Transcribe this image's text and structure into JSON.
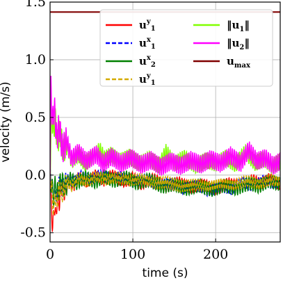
{
  "chart_data": {
    "type": "line",
    "xlabel": "time (s)",
    "ylabel": "velocity (m/s)",
    "xlim": [
      0,
      278
    ],
    "ylim": [
      -0.58,
      1.5
    ],
    "x_ticks": [
      {
        "value": 0,
        "label": "0"
      },
      {
        "value": 100,
        "label": "100"
      },
      {
        "value": 200,
        "label": "200"
      }
    ],
    "y_ticks": [
      {
        "value": -0.5,
        "label": "-0.5"
      },
      {
        "value": 0.0,
        "label": "0.0"
      },
      {
        "value": 0.5,
        "label": "0.5"
      },
      {
        "value": 1.0,
        "label": "1.0"
      },
      {
        "value": 1.5,
        "label": "1.5"
      }
    ],
    "grid": true,
    "legend_position": "top-right",
    "legend": [
      {
        "label": "uʸ₁",
        "base": "u",
        "sup": "y",
        "sub": "1",
        "norm": false,
        "color": "#ff0000",
        "dash": "solid"
      },
      {
        "label": "uˣ₁",
        "base": "u",
        "sup": "x",
        "sub": "1",
        "norm": false,
        "color": "#0000ff",
        "dash": "dashed"
      },
      {
        "label": "uˣ₂",
        "base": "u",
        "sup": "x",
        "sub": "2",
        "norm": false,
        "color": "#008000",
        "dash": "solid"
      },
      {
        "label": "uʸ₁",
        "base": "u",
        "sup": "y",
        "sub": "1",
        "norm": false,
        "color": "#d4aa00",
        "dash": "dashed"
      },
      {
        "label": "‖u₁‖",
        "base": "u",
        "sup": "",
        "sub": "1",
        "norm": true,
        "color": "#80ff00",
        "dash": "solid"
      },
      {
        "label": "‖u₂‖",
        "base": "u",
        "sup": "",
        "sub": "2",
        "norm": true,
        "color": "#ff00ff",
        "dash": "solid"
      },
      {
        "label": "uₘₐₓ",
        "base": "u",
        "sup": "",
        "sub": "max",
        "norm": false,
        "color": "#800000",
        "dash": "solid"
      }
    ],
    "series": [
      {
        "color": "#ff0000",
        "dash": "solid",
        "points": [
          [
            0,
            0
          ],
          [
            2,
            -0.3
          ],
          [
            3,
            -0.5
          ],
          [
            5,
            -0.25
          ],
          [
            7,
            -0.38
          ],
          [
            9,
            -0.15
          ],
          [
            11,
            -0.24
          ],
          [
            14,
            -0.1
          ],
          [
            18,
            -0.15
          ],
          [
            22,
            -0.05
          ],
          [
            28,
            -0.1
          ],
          [
            35,
            -0.02
          ],
          [
            45,
            -0.06
          ],
          [
            55,
            0.0
          ],
          [
            65,
            -0.05
          ],
          [
            75,
            0.0
          ],
          [
            90,
            -0.06
          ],
          [
            100,
            -0.02
          ],
          [
            110,
            -0.08
          ],
          [
            125,
            -0.03
          ],
          [
            140,
            -0.1
          ],
          [
            155,
            -0.06
          ],
          [
            170,
            -0.11
          ],
          [
            185,
            -0.08
          ],
          [
            200,
            -0.12
          ],
          [
            215,
            -0.07
          ],
          [
            230,
            -0.1
          ],
          [
            245,
            -0.04
          ],
          [
            255,
            -0.08
          ],
          [
            265,
            -0.03
          ],
          [
            272,
            -0.06
          ],
          [
            278,
            -0.08
          ]
        ]
      },
      {
        "color": "#0000ff",
        "dash": "dashed",
        "points": [
          [
            0,
            0
          ],
          [
            2,
            -0.1
          ],
          [
            4,
            -0.22
          ],
          [
            6,
            -0.12
          ],
          [
            8,
            -0.2
          ],
          [
            11,
            -0.08
          ],
          [
            15,
            -0.12
          ],
          [
            20,
            -0.03
          ],
          [
            28,
            -0.06
          ],
          [
            38,
            0.0
          ],
          [
            50,
            -0.04
          ],
          [
            60,
            0.01
          ],
          [
            72,
            -0.03
          ],
          [
            85,
            -0.01
          ],
          [
            100,
            -0.06
          ],
          [
            115,
            -0.03
          ],
          [
            130,
            -0.09
          ],
          [
            145,
            -0.07
          ],
          [
            160,
            -0.12
          ],
          [
            175,
            -0.08
          ],
          [
            190,
            -0.14
          ],
          [
            205,
            -0.1
          ],
          [
            220,
            -0.13
          ],
          [
            232,
            -0.06
          ],
          [
            245,
            -0.1
          ],
          [
            258,
            -0.04
          ],
          [
            268,
            -0.08
          ],
          [
            278,
            -0.05
          ]
        ]
      },
      {
        "color": "#008000",
        "dash": "solid",
        "points": [
          [
            0,
            0
          ],
          [
            2,
            -0.08
          ],
          [
            4,
            -0.2
          ],
          [
            6,
            -0.1
          ],
          [
            9,
            -0.16
          ],
          [
            13,
            -0.06
          ],
          [
            18,
            -0.1
          ],
          [
            24,
            -0.03
          ],
          [
            32,
            -0.07
          ],
          [
            42,
            -0.02
          ],
          [
            55,
            -0.06
          ],
          [
            65,
            -0.01
          ],
          [
            78,
            -0.05
          ],
          [
            92,
            -0.02
          ],
          [
            105,
            -0.07
          ],
          [
            120,
            -0.04
          ],
          [
            135,
            -0.1
          ],
          [
            150,
            -0.08
          ],
          [
            165,
            -0.12
          ],
          [
            180,
            -0.09
          ],
          [
            195,
            -0.13
          ],
          [
            210,
            -0.09
          ],
          [
            225,
            -0.12
          ],
          [
            240,
            -0.07
          ],
          [
            252,
            -0.1
          ],
          [
            264,
            -0.05
          ],
          [
            278,
            -0.08
          ]
        ]
      },
      {
        "color": "#d4aa00",
        "dash": "dashed",
        "points": [
          [
            0,
            0
          ],
          [
            2,
            -0.12
          ],
          [
            4,
            -0.3
          ],
          [
            6,
            -0.18
          ],
          [
            8,
            -0.25
          ],
          [
            11,
            -0.12
          ],
          [
            15,
            -0.16
          ],
          [
            20,
            -0.06
          ],
          [
            26,
            -0.1
          ],
          [
            34,
            -0.03
          ],
          [
            44,
            -0.06
          ],
          [
            56,
            -0.01
          ],
          [
            68,
            -0.04
          ],
          [
            82,
            -0.02
          ],
          [
            96,
            -0.05
          ],
          [
            110,
            -0.03
          ],
          [
            126,
            -0.07
          ],
          [
            142,
            -0.06
          ],
          [
            158,
            -0.1
          ],
          [
            174,
            -0.08
          ],
          [
            190,
            -0.1
          ],
          [
            206,
            -0.07
          ],
          [
            222,
            -0.09
          ],
          [
            238,
            -0.05
          ],
          [
            252,
            -0.08
          ],
          [
            266,
            -0.04
          ],
          [
            278,
            -0.06
          ]
        ]
      },
      {
        "color": "#80ff00",
        "dash": "solid",
        "points": [
          [
            0,
            0.0
          ],
          [
            2,
            0.55
          ],
          [
            4,
            0.35
          ],
          [
            6,
            0.5
          ],
          [
            9,
            0.28
          ],
          [
            12,
            0.38
          ],
          [
            16,
            0.2
          ],
          [
            20,
            0.28
          ],
          [
            26,
            0.12
          ],
          [
            34,
            0.18
          ],
          [
            42,
            0.1
          ],
          [
            52,
            0.16
          ],
          [
            60,
            0.22
          ],
          [
            66,
            0.14
          ],
          [
            74,
            0.18
          ],
          [
            84,
            0.12
          ],
          [
            96,
            0.16
          ],
          [
            108,
            0.1
          ],
          [
            120,
            0.14
          ],
          [
            132,
            0.08
          ],
          [
            140,
            0.2
          ],
          [
            150,
            0.1
          ],
          [
            162,
            0.15
          ],
          [
            176,
            0.08
          ],
          [
            188,
            0.13
          ],
          [
            200,
            0.1
          ],
          [
            212,
            0.15
          ],
          [
            224,
            0.09
          ],
          [
            236,
            0.2
          ],
          [
            248,
            0.1
          ],
          [
            258,
            0.14
          ],
          [
            268,
            0.08
          ],
          [
            278,
            0.12
          ]
        ]
      },
      {
        "color": "#ff00ff",
        "dash": "solid",
        "points": [
          [
            0,
            0.0
          ],
          [
            1,
            0.74
          ],
          [
            3,
            0.45
          ],
          [
            5,
            0.6
          ],
          [
            8,
            0.32
          ],
          [
            11,
            0.42
          ],
          [
            15,
            0.22
          ],
          [
            20,
            0.3
          ],
          [
            26,
            0.14
          ],
          [
            34,
            0.2
          ],
          [
            44,
            0.12
          ],
          [
            56,
            0.18
          ],
          [
            64,
            0.1
          ],
          [
            74,
            0.16
          ],
          [
            86,
            0.1
          ],
          [
            98,
            0.15
          ],
          [
            110,
            0.09
          ],
          [
            122,
            0.13
          ],
          [
            134,
            0.07
          ],
          [
            146,
            0.12
          ],
          [
            158,
            0.08
          ],
          [
            170,
            0.13
          ],
          [
            182,
            0.09
          ],
          [
            194,
            0.14
          ],
          [
            206,
            0.1
          ],
          [
            218,
            0.17
          ],
          [
            230,
            0.1
          ],
          [
            240,
            0.22
          ],
          [
            250,
            0.12
          ],
          [
            260,
            0.15
          ],
          [
            270,
            0.08
          ],
          [
            278,
            0.12
          ]
        ]
      },
      {
        "color": "#800000",
        "dash": "solid",
        "points": [
          [
            0,
            1.414
          ],
          [
            278,
            1.414
          ]
        ]
      }
    ]
  }
}
